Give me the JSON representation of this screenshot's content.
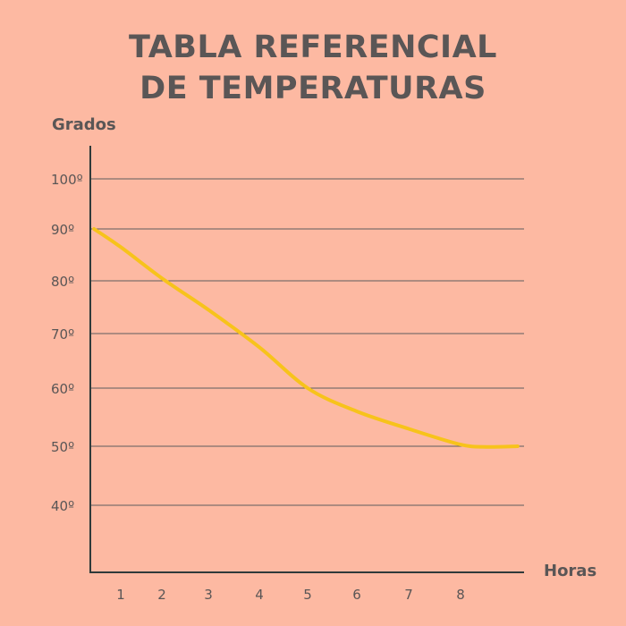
{
  "chart_data": {
    "type": "line",
    "title": [
      "TABLA REFERENCIAL",
      "DE TEMPERATURAS"
    ],
    "ylabel": "Grados",
    "xlabel": "Horas",
    "x_ticks": [
      "1",
      "2",
      "3",
      "4",
      "5",
      "6",
      "7",
      "8"
    ],
    "y_ticks": [
      "100º",
      "90º",
      "80º",
      "70º",
      "60º",
      "50º",
      "40º"
    ],
    "y_tick_values": [
      100,
      90,
      80,
      70,
      60,
      50,
      40
    ],
    "series": [
      {
        "color": "#f7c31b",
        "x": [
          0.35,
          1,
          2,
          3,
          4,
          5,
          6,
          7,
          8,
          8.5,
          9.1
        ],
        "y": [
          90,
          86.5,
          80.5,
          74.5,
          67.5,
          60,
          56,
          53,
          50.3,
          49.9,
          50
        ]
      }
    ],
    "grid": true,
    "axis_color": "#2f3a3a",
    "grid_color": "#5d5d5d",
    "background": "#fdb9a2"
  }
}
